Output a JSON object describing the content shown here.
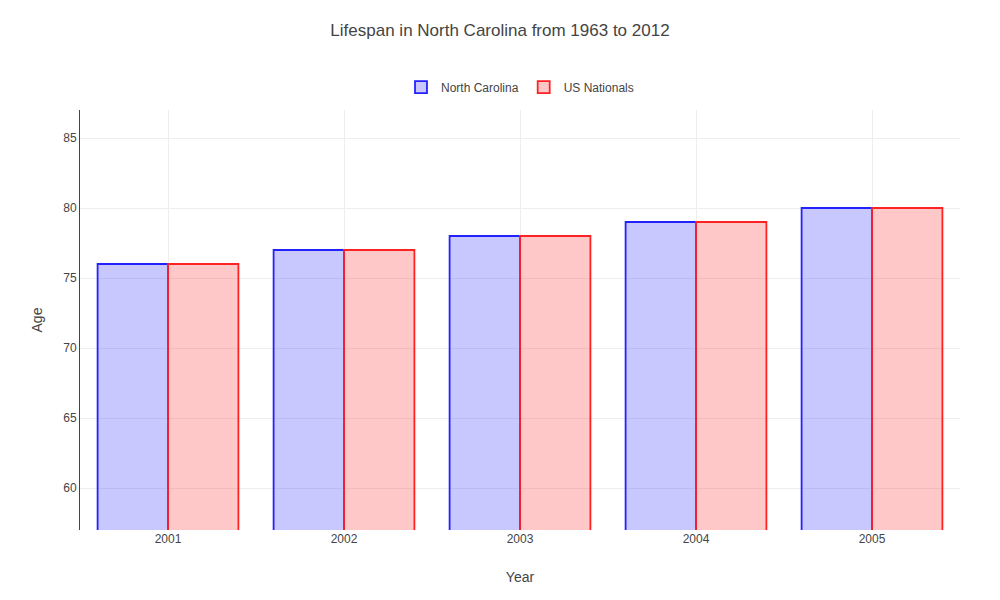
{
  "chart_data": {
    "type": "bar",
    "title": "Lifespan in North Carolina from 1963 to 2012",
    "xlabel": "Year",
    "ylabel": "Age",
    "categories": [
      "2001",
      "2002",
      "2003",
      "2004",
      "2005"
    ],
    "series": [
      {
        "name": "North Carolina",
        "color": "#2222ff",
        "values": [
          76,
          77,
          78,
          79,
          80
        ]
      },
      {
        "name": "US Nationals",
        "color": "#ff2222",
        "values": [
          76,
          77,
          78,
          79,
          80
        ]
      }
    ],
    "ylim": [
      57,
      87
    ],
    "yticks": [
      60,
      65,
      70,
      75,
      80,
      85
    ],
    "grid": true,
    "legend": "upper center"
  }
}
